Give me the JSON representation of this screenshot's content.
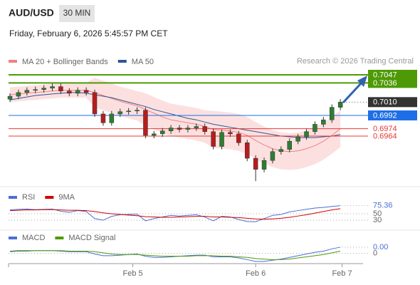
{
  "chart_data": {
    "type": "candlestick",
    "title": "AUD/USD",
    "timeframe": "30 MIN",
    "subtitle": "Friday, February 6, 2026 5:45:57 PM CET",
    "legend": [
      {
        "name": "MA 20 + Bollinger Bands",
        "color": "#f08080"
      },
      {
        "name": "MA 50",
        "color": "#2f5597"
      }
    ],
    "credit": "Research © 2026 Trading Central",
    "xlim": [
      -0.17,
      48.4
    ],
    "xticks": [
      {
        "value": 14.5,
        "label": "Feb 5"
      },
      {
        "value": 29,
        "label": "Feb 6"
      },
      {
        "value": 39.2,
        "label": "Feb 7"
      }
    ],
    "ylim": [
      0.6895,
      0.7055
    ],
    "open": [
      0.7014,
      0.7018,
      0.7023,
      0.7026,
      0.7027,
      0.7029,
      0.7031,
      0.7025,
      0.7022,
      0.7026,
      0.7023,
      0.6994,
      0.6982,
      0.6994,
      0.6997,
      0.6998,
      0.6999,
      0.6965,
      0.6967,
      0.6971,
      0.6975,
      0.6973,
      0.6975,
      0.6977,
      0.697,
      0.695,
      0.6969,
      0.6967,
      0.6955,
      0.6934,
      0.6919,
      0.6931,
      0.6943,
      0.6946,
      0.6957,
      0.6963,
      0.697,
      0.698,
      0.6986,
      0.7003
    ],
    "high": [
      0.7022,
      0.7027,
      0.703,
      0.7031,
      0.7033,
      0.7035,
      0.7035,
      0.7029,
      0.703,
      0.703,
      0.7027,
      0.6998,
      0.6998,
      0.7001,
      0.7002,
      0.7003,
      0.7003,
      0.6971,
      0.6975,
      0.6979,
      0.6979,
      0.6979,
      0.6981,
      0.6981,
      0.6974,
      0.6973,
      0.6973,
      0.6971,
      0.6959,
      0.6938,
      0.6935,
      0.6947,
      0.695,
      0.6961,
      0.6967,
      0.6974,
      0.6984,
      0.699,
      0.7007,
      0.7014
    ],
    "low": [
      0.701,
      0.7014,
      0.7019,
      0.7022,
      0.7023,
      0.7025,
      0.7021,
      0.7018,
      0.7018,
      0.7019,
      0.699,
      0.6978,
      0.6978,
      0.699,
      0.6993,
      0.6994,
      0.6961,
      0.6961,
      0.6963,
      0.6967,
      0.6969,
      0.6969,
      0.6971,
      0.6966,
      0.6946,
      0.6946,
      0.6963,
      0.6951,
      0.693,
      0.6903,
      0.6915,
      0.6927,
      0.6939,
      0.6942,
      0.6953,
      0.6959,
      0.6966,
      0.6976,
      0.6982,
      0.6999
    ],
    "close": [
      0.7018,
      0.7023,
      0.7026,
      0.7027,
      0.7029,
      0.7031,
      0.7025,
      0.7022,
      0.7026,
      0.7023,
      0.6994,
      0.6982,
      0.6994,
      0.6997,
      0.6998,
      0.6999,
      0.6965,
      0.6967,
      0.6971,
      0.6975,
      0.6973,
      0.6975,
      0.6977,
      0.697,
      0.695,
      0.6969,
      0.6967,
      0.6955,
      0.6934,
      0.6919,
      0.6931,
      0.6943,
      0.6946,
      0.6957,
      0.6963,
      0.697,
      0.698,
      0.6986,
      0.7003,
      0.701
    ],
    "up_color": "#2e7d32",
    "down_color": "#b71c1c",
    "ma20": [
      0.702,
      0.7021,
      0.7022,
      0.7023,
      0.7024,
      0.7025,
      0.7026,
      0.7026,
      0.7026,
      0.7026,
      0.7023,
      0.7019,
      0.7015,
      0.7011,
      0.7008,
      0.7005,
      0.7,
      0.6995,
      0.699,
      0.6986,
      0.6984,
      0.6982,
      0.698,
      0.6977,
      0.6973,
      0.6972,
      0.6971,
      0.6969,
      0.6965,
      0.6958,
      0.6952,
      0.6947,
      0.6944,
      0.6943,
      0.6944,
      0.6947,
      0.6951,
      0.6957,
      0.6965,
      0.6974
    ],
    "bb_upper": [
      0.703,
      0.7031,
      0.7032,
      0.7033,
      0.7034,
      0.7035,
      0.7036,
      0.7036,
      0.7036,
      0.7036,
      0.7043,
      0.7039,
      0.7035,
      0.7031,
      0.7028,
      0.7025,
      0.7022,
      0.7017,
      0.7012,
      0.7008,
      0.7006,
      0.7004,
      0.7002,
      0.6999,
      0.6998,
      0.6997,
      0.6996,
      0.6994,
      0.699,
      0.6983,
      0.6977,
      0.6972,
      0.6969,
      0.6968,
      0.6969,
      0.6972,
      0.6976,
      0.6982,
      0.699,
      0.6999
    ],
    "bb_lower": [
      0.701,
      0.7011,
      0.7012,
      0.7013,
      0.7014,
      0.7015,
      0.7016,
      0.7016,
      0.7016,
      0.7016,
      0.7003,
      0.6999,
      0.6995,
      0.6991,
      0.6988,
      0.6985,
      0.6978,
      0.6973,
      0.6968,
      0.6964,
      0.6962,
      0.696,
      0.6958,
      0.6955,
      0.6948,
      0.6947,
      0.6946,
      0.6944,
      0.694,
      0.6933,
      0.6927,
      0.6922,
      0.6919,
      0.6918,
      0.6919,
      0.6922,
      0.6926,
      0.6932,
      0.694,
      0.6949
    ],
    "ma50": [
      0.7013,
      0.7015,
      0.7017,
      0.7019,
      0.702,
      0.7021,
      0.7022,
      0.7023,
      0.7023,
      0.7022,
      0.702,
      0.7018,
      0.7016,
      0.7013,
      0.701,
      0.7007,
      0.7004,
      0.7,
      0.6997,
      0.6994,
      0.6991,
      0.6988,
      0.6986,
      0.6983,
      0.698,
      0.6978,
      0.6976,
      0.6974,
      0.6972,
      0.697,
      0.6968,
      0.6966,
      0.6964,
      0.6963,
      0.6962,
      0.6962,
      0.6962,
      0.6963,
      0.6964,
      0.6966
    ],
    "levels": [
      {
        "value": 0.7047,
        "color": "#4e9a06",
        "box": true
      },
      {
        "value": 0.7036,
        "color": "#4e9a06",
        "box": true
      },
      {
        "value": 0.701,
        "label": "0.7010",
        "color": "#333333",
        "box": true,
        "dotted": true
      },
      {
        "value": 0.6992,
        "color": "#1e6fe6",
        "box": true
      },
      {
        "value": 0.6974,
        "color": "#e53935",
        "box": false
      },
      {
        "value": 0.6964,
        "color": "#e53935",
        "box": false
      }
    ],
    "rsi": {
      "series": [
        {
          "name": "RSI",
          "color": "#4a6fd6",
          "values": [
            62,
            64,
            65,
            63,
            64,
            65,
            58,
            55,
            60,
            57,
            35,
            30,
            42,
            47,
            48,
            49,
            28,
            35,
            40,
            45,
            43,
            45,
            47,
            40,
            28,
            42,
            40,
            32,
            26,
            25,
            35,
            45,
            48,
            56,
            60,
            64,
            68,
            70,
            73,
            75.36
          ]
        },
        {
          "name": "9MA",
          "color": "#d00000",
          "values": [
            60,
            61,
            62,
            62,
            63,
            63,
            62,
            61,
            61,
            60,
            57,
            53,
            50,
            48,
            46,
            44,
            41,
            40,
            39,
            39,
            40,
            41,
            42,
            42,
            40,
            40,
            39,
            38,
            36,
            34,
            33,
            34,
            36,
            39,
            43,
            47,
            52,
            57,
            62,
            66
          ]
        }
      ],
      "ylim": [
        10,
        88
      ],
      "yticks": [
        30,
        50
      ]
    },
    "macd": {
      "series": [
        {
          "name": "MACD",
          "color": "#4a6fd6",
          "values": [
            0.0004,
            0.0005,
            0.0005,
            0.0005,
            0.0005,
            0.0005,
            0.0004,
            0.0003,
            0.0003,
            0.0003,
            -0.0001,
            -0.0004,
            -0.0004,
            -0.0003,
            -0.0002,
            -0.0001,
            -0.0005,
            -0.0007,
            -0.0007,
            -0.0006,
            -0.0005,
            -0.0004,
            -0.0003,
            -0.0003,
            -0.0006,
            -0.0006,
            -0.0006,
            -0.0008,
            -0.0011,
            -0.0014,
            -0.0014,
            -0.0012,
            -0.001,
            -0.0007,
            -0.0004,
            -0.0001,
            0.0002,
            0.0004,
            0.0008,
            0.0011
          ],
          "value_labels_last": "0.00"
        },
        {
          "name": "MACD Signal",
          "color": "#4e9a06",
          "values": [
            0.0003,
            0.0004,
            0.0004,
            0.0005,
            0.0005,
            0.0005,
            0.0005,
            0.0004,
            0.0004,
            0.0004,
            0.0003,
            0.0001,
            -0.0001,
            -0.0002,
            -0.0002,
            -0.0002,
            -0.0003,
            -0.0004,
            -0.0005,
            -0.0005,
            -0.0005,
            -0.0005,
            -0.0004,
            -0.0004,
            -0.0004,
            -0.0005,
            -0.0005,
            -0.0006,
            -0.0007,
            -0.0009,
            -0.001,
            -0.0011,
            -0.0011,
            -0.001,
            -0.0008,
            -0.0006,
            -0.0004,
            -0.0002,
            0.0001,
            0.0004
          ]
        }
      ],
      "ylim": [
        -0.0018,
        0.0026
      ],
      "yticks": [
        0
      ]
    }
  }
}
